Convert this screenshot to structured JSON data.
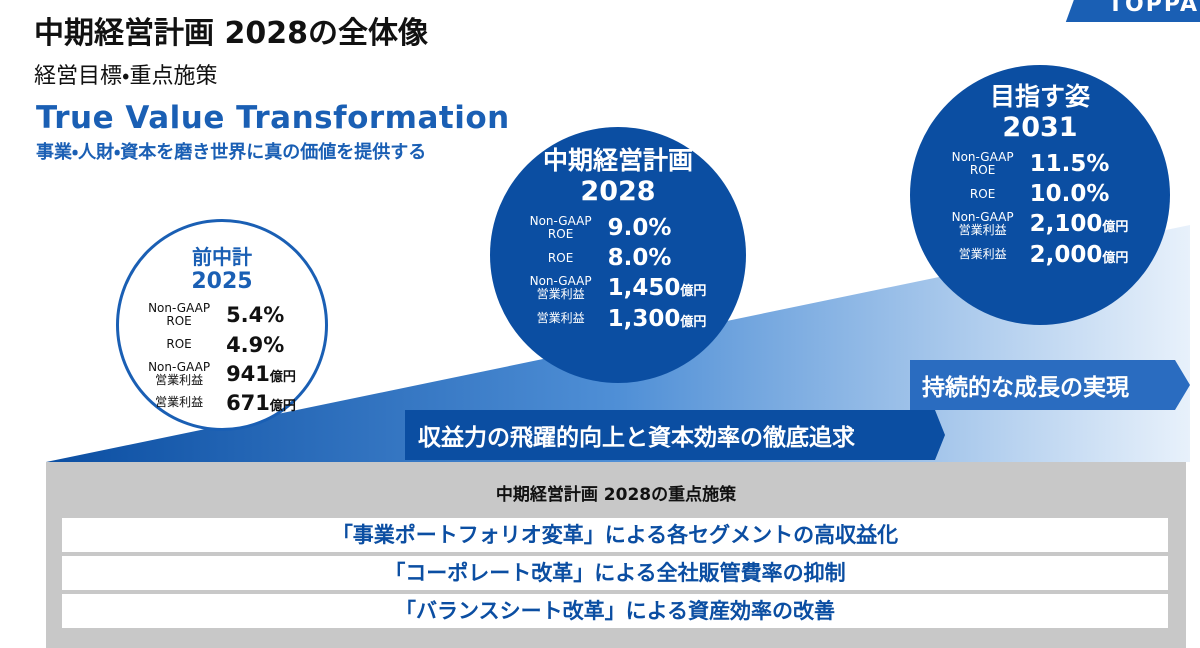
{
  "header": {
    "title": "中期経営計画 2028の全体像",
    "subtitle": "経営目標・重点施策",
    "slogan": "True Value Transformation",
    "tagline": "事業・人財・資本を磨き世界に真の価値を提供する",
    "logo": "TOPPAN"
  },
  "circles": [
    {
      "label": "前中計",
      "year": "2025",
      "metrics": [
        {
          "label": [
            "Non-GAAP",
            "ROE"
          ],
          "value": "5.4%"
        },
        {
          "label": [
            "ROE"
          ],
          "value": "4.9%"
        },
        {
          "label": [
            "Non-GAAP",
            "営業利益"
          ],
          "value": "941",
          "unit": "億円"
        },
        {
          "label": [
            "営業利益"
          ],
          "value": "671",
          "unit": "億円"
        }
      ]
    },
    {
      "label": "中期経営計画",
      "year": "2028",
      "metrics": [
        {
          "label": [
            "Non-GAAP",
            "ROE"
          ],
          "value": "9.0%"
        },
        {
          "label": [
            "ROE"
          ],
          "value": "8.0%"
        },
        {
          "label": [
            "Non-GAAP",
            "営業利益"
          ],
          "value": "1,450",
          "unit": "億円"
        },
        {
          "label": [
            "営業利益"
          ],
          "value": "1,300",
          "unit": "億円"
        }
      ]
    },
    {
      "label": "目指す姿",
      "year": "2031",
      "metrics": [
        {
          "label": [
            "Non-GAAP",
            "ROE"
          ],
          "value": "11.5%"
        },
        {
          "label": [
            "ROE"
          ],
          "value": "10.0%"
        },
        {
          "label": [
            "Non-GAAP",
            "営業利益"
          ],
          "value": "2,100",
          "unit": "億円"
        },
        {
          "label": [
            "営業利益"
          ],
          "value": "2,000",
          "unit": "億円"
        }
      ]
    }
  ],
  "arrows": [
    "収益力の飛躍的向上と資本効率の徹底追求",
    "持続的な成長の実現"
  ],
  "focus": {
    "title": "中期経営計画 2028の重点施策",
    "items": [
      "「事業ポートフォリオ変革」による各セグメントの高収益化",
      "「コーポレート改革」による全社販管費率の抑制",
      "「バランスシート改革」による資産効率の改善"
    ]
  }
}
